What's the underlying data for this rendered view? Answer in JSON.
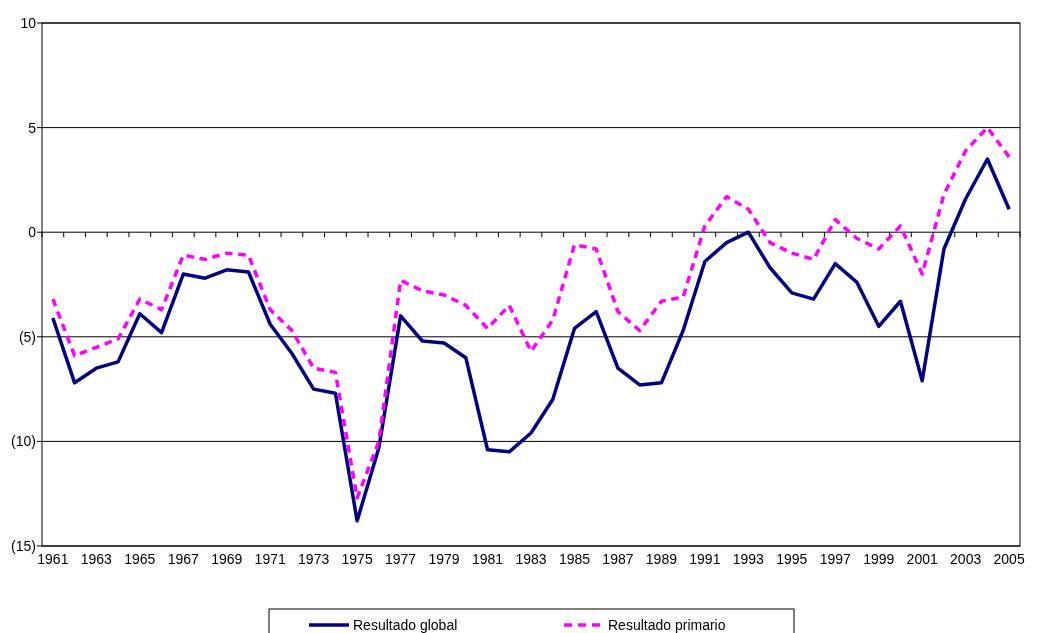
{
  "chart_data": {
    "type": "line",
    "categories": [
      "1961",
      null,
      "1963",
      null,
      "1965",
      null,
      "1967",
      null,
      "1969",
      null,
      "1971",
      null,
      "1973",
      null,
      "1975",
      null,
      "1977",
      null,
      "1979",
      null,
      "1981",
      null,
      "1983",
      null,
      "1985",
      null,
      "1987",
      null,
      "1989",
      null,
      "1991",
      null,
      "1993",
      null,
      "1995",
      null,
      "1997",
      null,
      "1999",
      null,
      "2001",
      null,
      "2003",
      null,
      "2005"
    ],
    "series": [
      {
        "name": "Resultado global",
        "color": "#000080",
        "line_style": "solid",
        "values": [
          -4.1,
          -7.2,
          -6.5,
          -6.2,
          -3.9,
          -4.8,
          -2.0,
          -2.2,
          -1.8,
          -1.9,
          -4.4,
          -5.8,
          -7.5,
          -7.7,
          -13.8,
          -10.3,
          -4.0,
          -5.2,
          -5.3,
          -6.0,
          -10.4,
          -10.5,
          -9.6,
          -8.0,
          -4.6,
          -3.8,
          -6.5,
          -7.3,
          -7.2,
          -4.7,
          -1.4,
          -0.5,
          0.0,
          -1.7,
          -2.9,
          -3.2,
          -1.5,
          -2.4,
          -4.5,
          -3.3,
          -7.1,
          -0.8,
          1.6,
          3.5,
          1.1
        ]
      },
      {
        "name": "Resultado primario",
        "color": "#ff00ff",
        "line_style": "dashed",
        "values": [
          -3.2,
          -5.9,
          -5.5,
          -5.1,
          -3.2,
          -3.7,
          -1.1,
          -1.3,
          -1.0,
          -1.1,
          -3.7,
          -4.7,
          -6.5,
          -6.7,
          -12.7,
          -10.0,
          -2.3,
          -2.8,
          -3.0,
          -3.5,
          -4.6,
          -3.5,
          -5.7,
          -4.2,
          -0.6,
          -0.8,
          -3.8,
          -4.7,
          -3.3,
          -3.1,
          0.3,
          1.7,
          1.1,
          -0.5,
          -1.0,
          -1.3,
          0.6,
          -0.3,
          -0.8,
          0.3,
          -2.0,
          1.8,
          3.9,
          5.0,
          3.6
        ]
      }
    ],
    "ylim": [
      -15,
      10
    ],
    "yticks": [
      {
        "value": -15,
        "label": "(15)"
      },
      {
        "value": -10,
        "label": "(10)"
      },
      {
        "value": -5,
        "label": "(5)"
      },
      0,
      5,
      10
    ],
    "grid": "y",
    "legend": "bottom"
  }
}
